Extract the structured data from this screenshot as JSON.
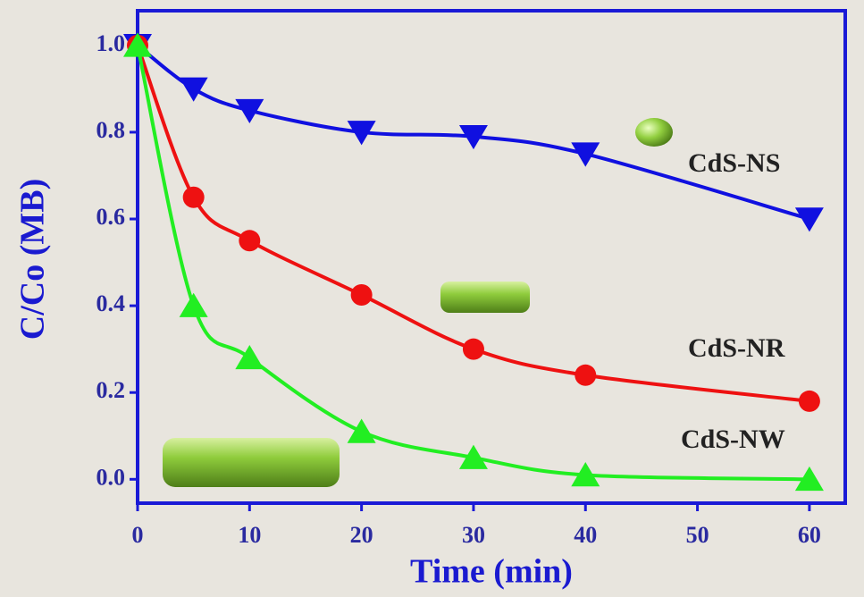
{
  "chart_data": {
    "type": "line",
    "xlabel": "Time (min)",
    "ylabel": "C/Co (MB)",
    "x": [
      0,
      5,
      10,
      20,
      30,
      40,
      60
    ],
    "series": [
      {
        "name": "CdS-NS",
        "color": "#1010e0",
        "marker": "triangle-down",
        "values": [
          1.0,
          0.9,
          0.85,
          0.8,
          0.79,
          0.75,
          0.6
        ]
      },
      {
        "name": "CdS-NR",
        "color": "#ee1111",
        "marker": "circle",
        "values": [
          1.0,
          0.65,
          0.55,
          0.425,
          0.3,
          0.24,
          0.18
        ]
      },
      {
        "name": "CdS-NW",
        "color": "#22ee22",
        "marker": "triangle-up",
        "values": [
          1.0,
          0.4,
          0.28,
          0.11,
          0.05,
          0.01,
          0.0
        ]
      }
    ],
    "xlim": [
      0,
      63.2
    ],
    "ylim": [
      -0.055,
      1.08
    ],
    "xticks": [
      0,
      10,
      20,
      30,
      40,
      50,
      60
    ],
    "yticks": [
      {
        "value": 0,
        "label": "0.0"
      },
      0.2,
      0.4,
      0.6,
      0.8,
      {
        "value": 1,
        "label": "1.0"
      }
    ],
    "grid": false
  }
}
